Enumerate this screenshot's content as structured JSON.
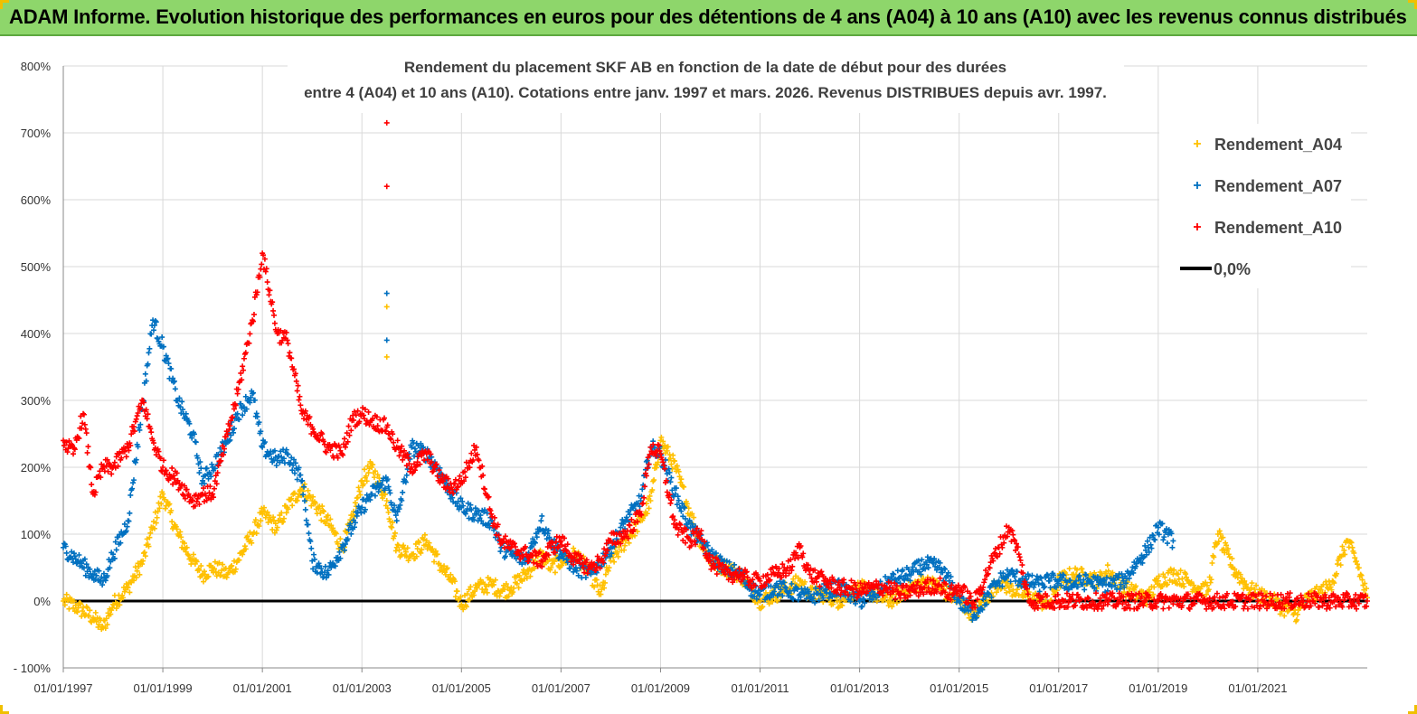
{
  "header": {
    "title": "ADAM Informe. Evolution historique des performances en euros pour des détentions de 4 ans (A04) à 10 ans (A10) avec les revenus connus distribués"
  },
  "colors": {
    "banner": "#8ed66b",
    "A04": "#ffc000",
    "A07": "#0070c0",
    "A10": "#ff0000",
    "zero": "#000000",
    "grid": "#d9d9d9"
  },
  "chart_data": {
    "type": "scatter",
    "title_line1": "Rendement du placement SKF AB en fonction de la date de début pour des durées",
    "title_line2": "entre 4 (A04) et 10 ans (A10). Cotations entre janv. 1997 et mars. 2026. Revenus DISTRIBUES depuis avr. 1997.",
    "xlabel": "",
    "ylabel": "",
    "xlim": [
      1997.0,
      2023.2
    ],
    "ylim": [
      -100,
      800
    ],
    "yticks": [
      -100,
      0,
      100,
      200,
      300,
      400,
      500,
      600,
      700,
      800
    ],
    "ytick_labels": [
      "- 100%",
      "0%",
      "100%",
      "200%",
      "300%",
      "400%",
      "500%",
      "600%",
      "700%",
      "800%"
    ],
    "xticks": [
      1997,
      1999,
      2001,
      2003,
      2005,
      2007,
      2009,
      2011,
      2013,
      2015,
      2017,
      2019,
      2021
    ],
    "xtick_labels": [
      "01/01/1997",
      "01/01/1999",
      "01/01/2001",
      "01/01/2003",
      "01/01/2005",
      "01/01/2007",
      "01/01/2009",
      "01/01/2011",
      "01/01/2013",
      "01/01/2015",
      "01/01/2017",
      "01/01/2019",
      "01/01/2021"
    ],
    "legend_position": "top-right",
    "series": [
      {
        "name": "Rendement_A04",
        "marker": "+",
        "x": [
          1997.0,
          1997.3,
          1997.6,
          1997.8,
          1998.0,
          1998.3,
          1998.6,
          1998.8,
          1999.0,
          1999.3,
          1999.6,
          1999.8,
          2000.0,
          2000.3,
          2000.5,
          2000.8,
          2001.0,
          2001.3,
          2001.5,
          2001.8,
          2002.0,
          2002.3,
          2002.6,
          2002.8,
          2003.0,
          2003.2,
          2003.5,
          2003.7,
          2004.0,
          2004.3,
          2004.6,
          2004.8,
          2005.0,
          2005.3,
          2005.6,
          2005.8,
          2006.0,
          2006.3,
          2006.6,
          2006.8,
          2007.0,
          2007.3,
          2007.6,
          2007.8,
          2008.0,
          2008.3,
          2008.6,
          2008.8,
          2009.0,
          2009.3,
          2009.6,
          2009.8,
          2010.0,
          2010.3,
          2010.6,
          2010.8,
          2011.0,
          2011.3,
          2011.6,
          2011.8,
          2012.0,
          2012.3,
          2012.6,
          2012.8,
          2013.0,
          2013.3,
          2013.6,
          2013.8,
          2014.0,
          2014.3,
          2014.6,
          2014.8,
          2015.0,
          2015.3,
          2015.6,
          2015.8,
          2016.0,
          2016.3,
          2016.6,
          2016.8,
          2017.0,
          2017.3,
          2017.6,
          2017.8,
          2018.0,
          2018.3,
          2018.6,
          2018.8,
          2019.0,
          2019.3,
          2019.6,
          2019.8,
          2020.0,
          2020.2,
          2020.5,
          2020.8,
          2021.0,
          2021.3,
          2021.5,
          2021.8,
          2022.0,
          2022.2,
          2022.4,
          2022.5,
          2022.8,
          2023.0,
          2023.2
        ],
        "y": [
          0,
          -10,
          -25,
          -40,
          -5,
          20,
          60,
          110,
          160,
          100,
          60,
          40,
          50,
          40,
          60,
          100,
          130,
          110,
          140,
          170,
          150,
          120,
          80,
          120,
          180,
          200,
          150,
          80,
          70,
          90,
          50,
          30,
          -5,
          20,
          25,
          15,
          20,
          40,
          70,
          50,
          60,
          70,
          40,
          10,
          60,
          90,
          120,
          150,
          240,
          200,
          130,
          90,
          60,
          50,
          40,
          20,
          0,
          10,
          20,
          30,
          10,
          10,
          0,
          10,
          20,
          10,
          0,
          10,
          20,
          30,
          20,
          10,
          0,
          -20,
          10,
          30,
          20,
          10,
          0,
          -5,
          30,
          40,
          35,
          30,
          45,
          20,
          10,
          5,
          30,
          40,
          30,
          20,
          15,
          100,
          50,
          20,
          10,
          0,
          -10,
          -20,
          5,
          10,
          20,
          30,
          90,
          55,
          5
        ],
        "color": "#ffc000"
      },
      {
        "name": "Rendement_A07",
        "marker": "+",
        "x": [
          1997.0,
          1997.3,
          1997.6,
          1997.8,
          1998.0,
          1998.3,
          1998.6,
          1998.8,
          1999.0,
          1999.3,
          1999.6,
          1999.8,
          2000.0,
          2000.3,
          2000.5,
          2000.8,
          2001.0,
          2001.3,
          2001.5,
          2001.8,
          2002.0,
          2002.3,
          2002.6,
          2002.8,
          2003.0,
          2003.2,
          2003.5,
          2003.7,
          2004.0,
          2004.3,
          2004.6,
          2004.8,
          2005.0,
          2005.3,
          2005.6,
          2005.8,
          2006.0,
          2006.3,
          2006.6,
          2006.8,
          2007.0,
          2007.3,
          2007.6,
          2007.8,
          2008.0,
          2008.3,
          2008.6,
          2008.8,
          2009.0,
          2009.3,
          2009.6,
          2009.8,
          2010.0,
          2010.3,
          2010.6,
          2010.8,
          2011.0,
          2011.3,
          2011.6,
          2011.8,
          2012.0,
          2012.3,
          2012.6,
          2012.8,
          2013.0,
          2013.3,
          2013.6,
          2013.8,
          2014.0,
          2014.3,
          2014.6,
          2014.8,
          2015.0,
          2015.3,
          2015.6,
          2015.8,
          2016.0,
          2016.3,
          2016.6,
          2016.8,
          2017.0,
          2017.3,
          2017.6,
          2017.8,
          2018.0,
          2018.3,
          2018.6,
          2018.8,
          2019.0,
          2019.3
        ],
        "y": [
          80,
          60,
          40,
          30,
          70,
          120,
          300,
          420,
          380,
          300,
          250,
          180,
          200,
          240,
          280,
          310,
          230,
          210,
          220,
          180,
          60,
          40,
          80,
          110,
          140,
          160,
          180,
          120,
          230,
          220,
          190,
          160,
          140,
          130,
          120,
          80,
          70,
          60,
          120,
          90,
          70,
          50,
          40,
          60,
          80,
          120,
          150,
          230,
          220,
          160,
          110,
          90,
          70,
          50,
          40,
          20,
          10,
          20,
          15,
          10,
          5,
          15,
          20,
          10,
          0,
          10,
          30,
          35,
          40,
          55,
          50,
          30,
          0,
          -20,
          10,
          30,
          40,
          30,
          25,
          30,
          30,
          25,
          30,
          25,
          25,
          30,
          60,
          80,
          110,
          90
        ],
        "color": "#0070c0"
      },
      {
        "name": "Rendement_A10",
        "marker": "+",
        "x": [
          1997.0,
          1997.2,
          1997.4,
          1997.6,
          1997.8,
          1998.0,
          1998.3,
          1998.6,
          1998.8,
          1999.0,
          1999.3,
          1999.6,
          1999.8,
          2000.0,
          2000.3,
          2000.5,
          2000.8,
          2001.0,
          2001.3,
          2001.5,
          2001.8,
          2002.0,
          2002.3,
          2002.6,
          2002.8,
          2003.0,
          2003.2,
          2003.5,
          2003.7,
          2004.0,
          2004.3,
          2004.6,
          2004.8,
          2005.0,
          2005.3,
          2005.6,
          2005.8,
          2006.0,
          2006.3,
          2006.6,
          2006.8,
          2007.0,
          2007.3,
          2007.6,
          2007.8,
          2008.0,
          2008.3,
          2008.6,
          2008.8,
          2009.0,
          2009.3,
          2009.6,
          2009.8,
          2010.0,
          2010.3,
          2010.6,
          2010.8,
          2011.0,
          2011.3,
          2011.6,
          2011.8,
          2012.0,
          2012.3,
          2012.6,
          2012.8,
          2013.0,
          2013.3,
          2013.6,
          2013.8,
          2014.0,
          2014.3,
          2014.6,
          2014.8,
          2015.0,
          2015.3,
          2015.6,
          2015.8,
          2016.0,
          2016.2,
          2016.4,
          2017.0,
          2018.0,
          2019.0,
          2020.0,
          2021.0,
          2022.0,
          2023.0,
          2023.2
        ],
        "y": [
          240,
          220,
          280,
          160,
          200,
          200,
          230,
          300,
          240,
          200,
          180,
          150,
          160,
          160,
          250,
          310,
          420,
          520,
          400,
          390,
          280,
          260,
          230,
          220,
          270,
          280,
          270,
          260,
          230,
          200,
          220,
          180,
          170,
          180,
          230,
          130,
          90,
          80,
          70,
          60,
          80,
          90,
          60,
          50,
          60,
          90,
          100,
          130,
          230,
          220,
          110,
          90,
          100,
          60,
          40,
          40,
          30,
          30,
          40,
          50,
          80,
          40,
          30,
          20,
          20,
          15,
          20,
          20,
          10,
          15,
          20,
          25,
          10,
          20,
          -5,
          50,
          80,
          110,
          70,
          0,
          0,
          0,
          0,
          0,
          0,
          0,
          0,
          0
        ],
        "color": "#ff0000"
      },
      {
        "name": "0,0%",
        "type": "line",
        "x": [
          1997.0,
          2023.2
        ],
        "y": [
          0,
          0
        ],
        "color": "#000000"
      }
    ],
    "outliers": [
      {
        "series": "Rendement_A10",
        "x": 2003.5,
        "y": 715
      },
      {
        "series": "Rendement_A10",
        "x": 2003.5,
        "y": 620
      },
      {
        "series": "Rendement_A07",
        "x": 2003.5,
        "y": 460
      },
      {
        "series": "Rendement_A07",
        "x": 2003.5,
        "y": 390
      },
      {
        "series": "Rendement_A04",
        "x": 2003.5,
        "y": 440
      },
      {
        "series": "Rendement_A04",
        "x": 2003.5,
        "y": 365
      }
    ]
  }
}
